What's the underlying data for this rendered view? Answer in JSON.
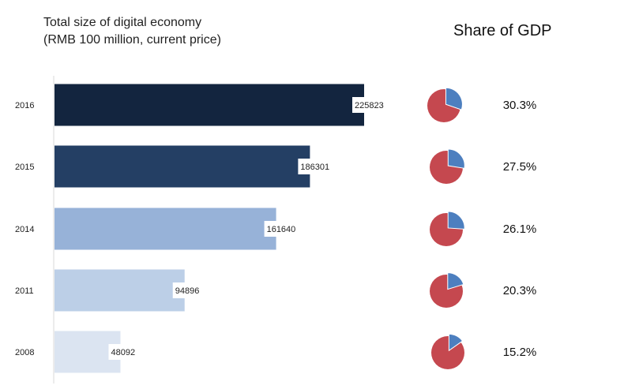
{
  "chart_data": {
    "type": "bar",
    "orientation": "horizontal",
    "title_line1": "Total size of digital economy",
    "title_line2": "(RMB 100 million, current price)",
    "share_title": "Share of GDP",
    "categories": [
      "2016",
      "2015",
      "2014",
      "2011",
      "2008"
    ],
    "values": [
      225823,
      186301,
      161640,
      94896,
      48092
    ],
    "value_labels": [
      "225823",
      "186301",
      "161640",
      "94896",
      "48092"
    ],
    "gdp_share": [
      30.3,
      27.5,
      26.1,
      20.3,
      15.2
    ],
    "gdp_share_labels": [
      "30.3%",
      "27.5%",
      "26.1%",
      "20.3%",
      "15.2%"
    ],
    "bar_colors": [
      "#13253f",
      "#243f64",
      "#97b2d8",
      "#bccfe7",
      "#dbe4f1"
    ],
    "pie_colors": {
      "share": "#4d7fbf",
      "rest": "#c5484f"
    },
    "xlim": [
      0,
      225823
    ],
    "grid": false,
    "legend": "none"
  }
}
